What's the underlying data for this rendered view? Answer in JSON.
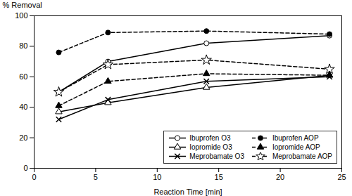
{
  "chart_data": {
    "type": "line",
    "xlabel": "Reaction Time [min]",
    "ylabel": "% Removal",
    "x": [
      2,
      6,
      14,
      24
    ],
    "series": [
      {
        "name": "Ibuprofen O3",
        "color": "black",
        "values": [
          50,
          70,
          82,
          87
        ],
        "marker": "open-circle",
        "line_style": "solid"
      },
      {
        "name": "Iopromide O3",
        "color": "black",
        "values": [
          37,
          43,
          53,
          61
        ],
        "marker": "open-triangle",
        "line_style": "solid"
      },
      {
        "name": "Meprobamate O3",
        "color": "black",
        "values": [
          32,
          45,
          57,
          60
        ],
        "marker": "x",
        "line_style": "solid"
      },
      {
        "name": "Ibuprofen AOP",
        "color": "black",
        "values": [
          76,
          89,
          90,
          88
        ],
        "marker": "circle",
        "line_style": "dashed"
      },
      {
        "name": "Iopromide AOP",
        "color": "black",
        "values": [
          41,
          57,
          62,
          61
        ],
        "marker": "triangle",
        "line_style": "dashed"
      },
      {
        "name": "Meprobamate AOP",
        "color": "black",
        "values": [
          50,
          68,
          71,
          65
        ],
        "marker": "open-star",
        "line_style": "dashed"
      }
    ],
    "xlim": [
      0,
      25
    ],
    "ylim": [
      0,
      100
    ],
    "xticks": [
      0,
      5,
      10,
      15,
      20,
      25
    ],
    "yticks": [
      0,
      20,
      40,
      60,
      80,
      100
    ],
    "grid": false,
    "legend": "lower right"
  }
}
